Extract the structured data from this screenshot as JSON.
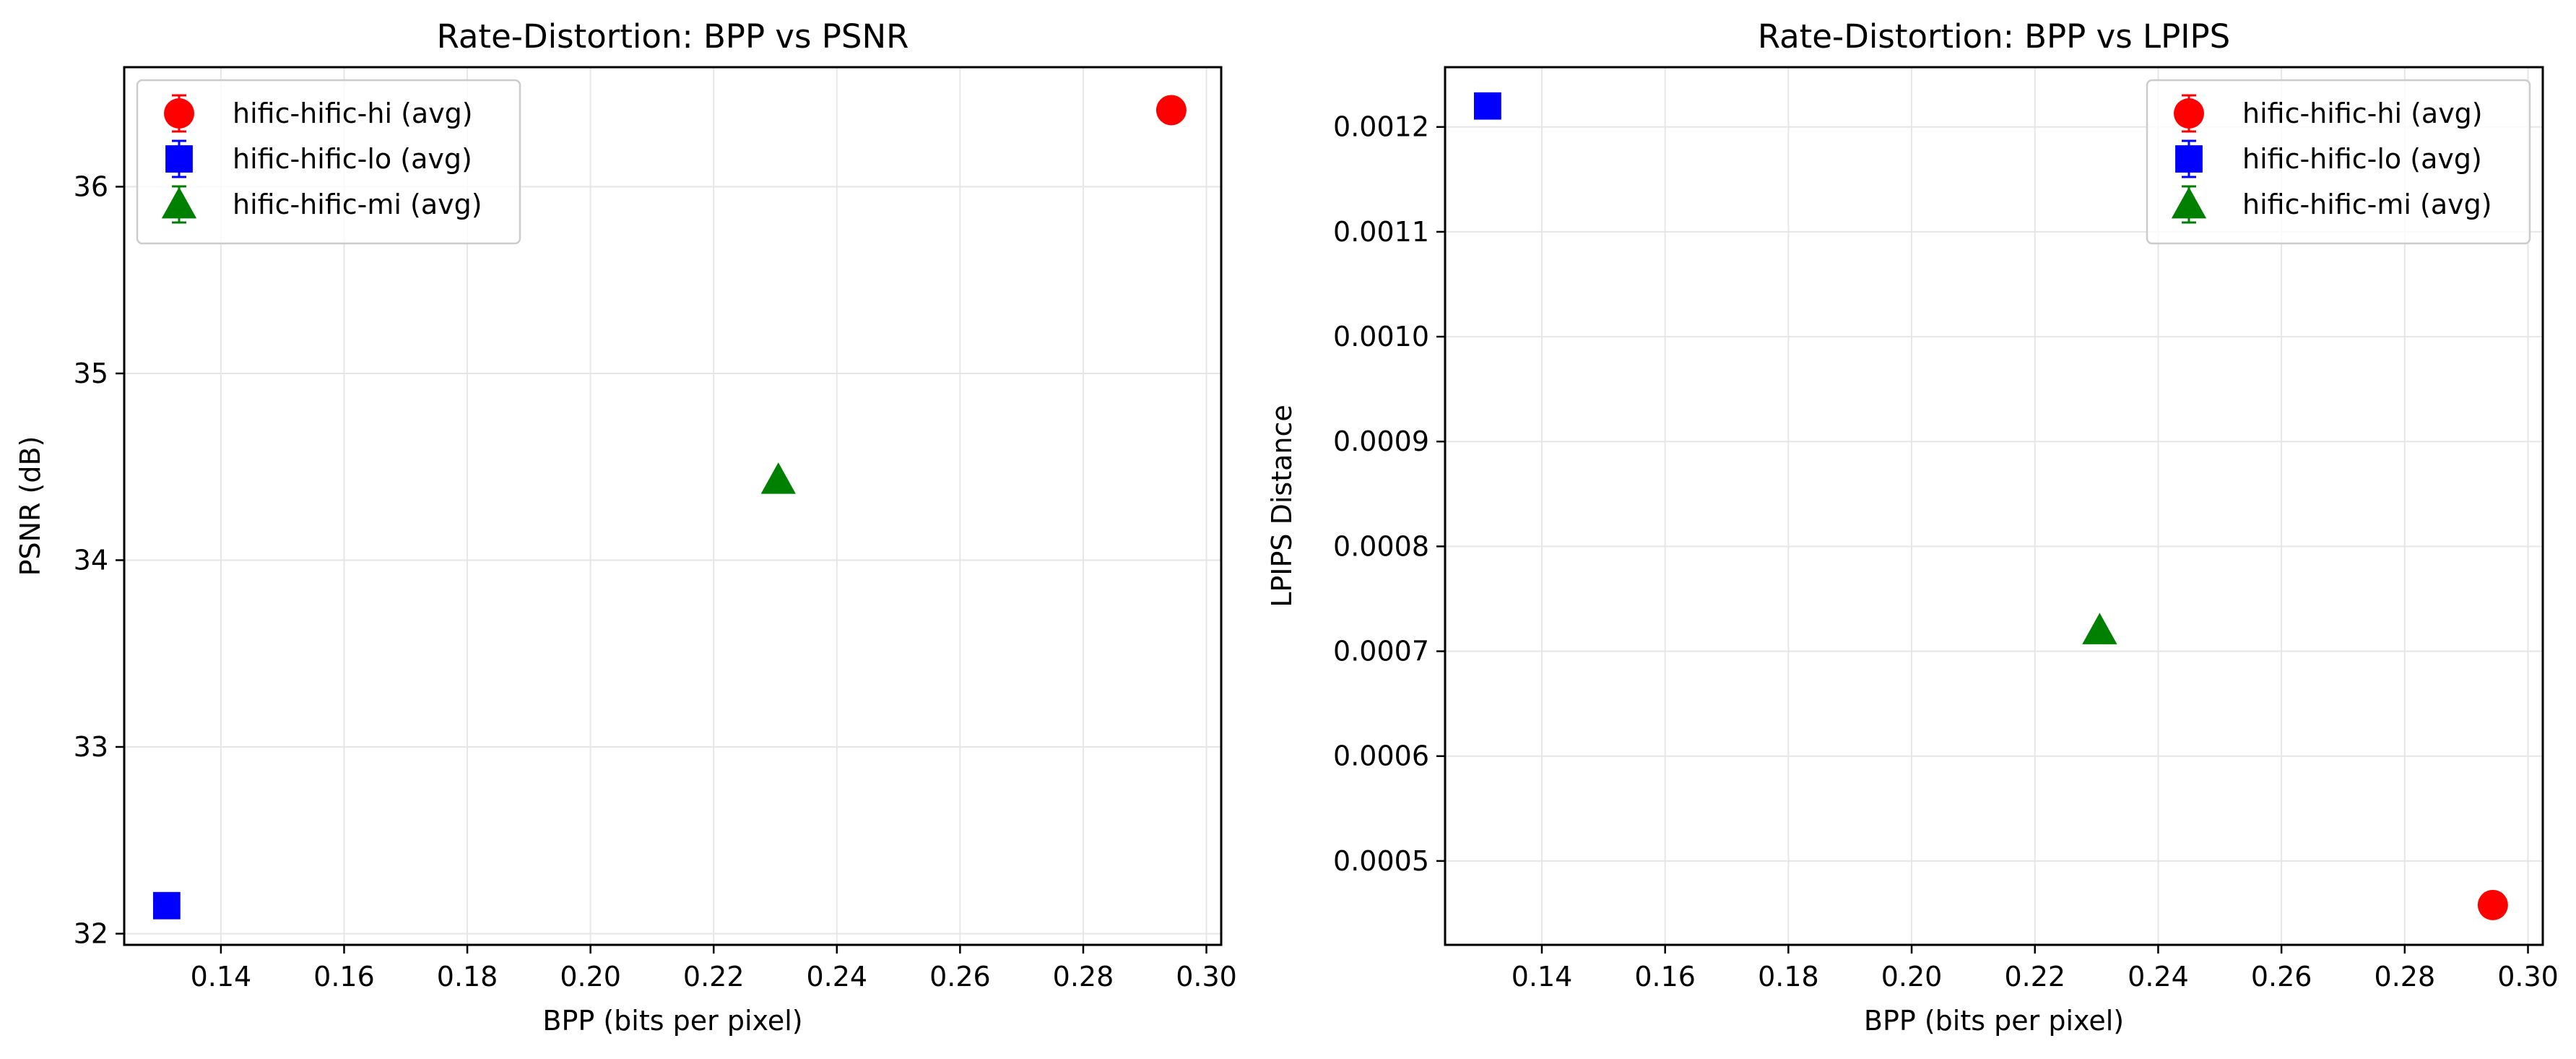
{
  "chart_data": [
    {
      "type": "scatter",
      "title": "Rate-Distortion: BPP vs PSNR",
      "xlabel": "BPP (bits per pixel)",
      "ylabel": "PSNR (dB)",
      "xlim": [
        0.1243,
        0.3024
      ],
      "ylim": [
        31.94,
        36.64
      ],
      "x_ticks": [
        "0.14",
        "0.16",
        "0.18",
        "0.20",
        "0.22",
        "0.24",
        "0.26",
        "0.28",
        "0.30"
      ],
      "y_ticks": [
        "32",
        "33",
        "34",
        "35",
        "36"
      ],
      "grid": true,
      "legend_position": "top-left",
      "series": [
        {
          "name": "hific-hific-hi (avg)",
          "marker": "circle",
          "color": "#ff0000",
          "x": 0.2943,
          "y": 36.41
        },
        {
          "name": "hific-hific-lo (avg)",
          "marker": "square",
          "color": "#0000ff",
          "x": 0.1312,
          "y": 32.15
        },
        {
          "name": "hific-hific-mi (avg)",
          "marker": "triangle",
          "color": "#008000",
          "x": 0.2305,
          "y": 34.43
        }
      ]
    },
    {
      "type": "scatter",
      "title": "Rate-Distortion: BPP vs LPIPS",
      "xlabel": "BPP (bits per pixel)",
      "ylabel": "LPIPS Distance",
      "xlim": [
        0.1243,
        0.3024
      ],
      "ylim": [
        0.00042,
        0.001257
      ],
      "x_ticks": [
        "0.14",
        "0.16",
        "0.18",
        "0.20",
        "0.22",
        "0.24",
        "0.26",
        "0.28",
        "0.30"
      ],
      "y_ticks": [
        "0.0005",
        "0.0006",
        "0.0007",
        "0.0008",
        "0.0009",
        "0.0010",
        "0.0011",
        "0.0012"
      ],
      "grid": true,
      "legend_position": "top-right",
      "series": [
        {
          "name": "hific-hific-hi (avg)",
          "marker": "circle",
          "color": "#ff0000",
          "x": 0.2943,
          "y": 0.000458
        },
        {
          "name": "hific-hific-lo (avg)",
          "marker": "square",
          "color": "#0000ff",
          "x": 0.1312,
          "y": 0.00122
        },
        {
          "name": "hific-hific-mi (avg)",
          "marker": "triangle",
          "color": "#008000",
          "x": 0.2305,
          "y": 0.00072
        }
      ]
    }
  ]
}
